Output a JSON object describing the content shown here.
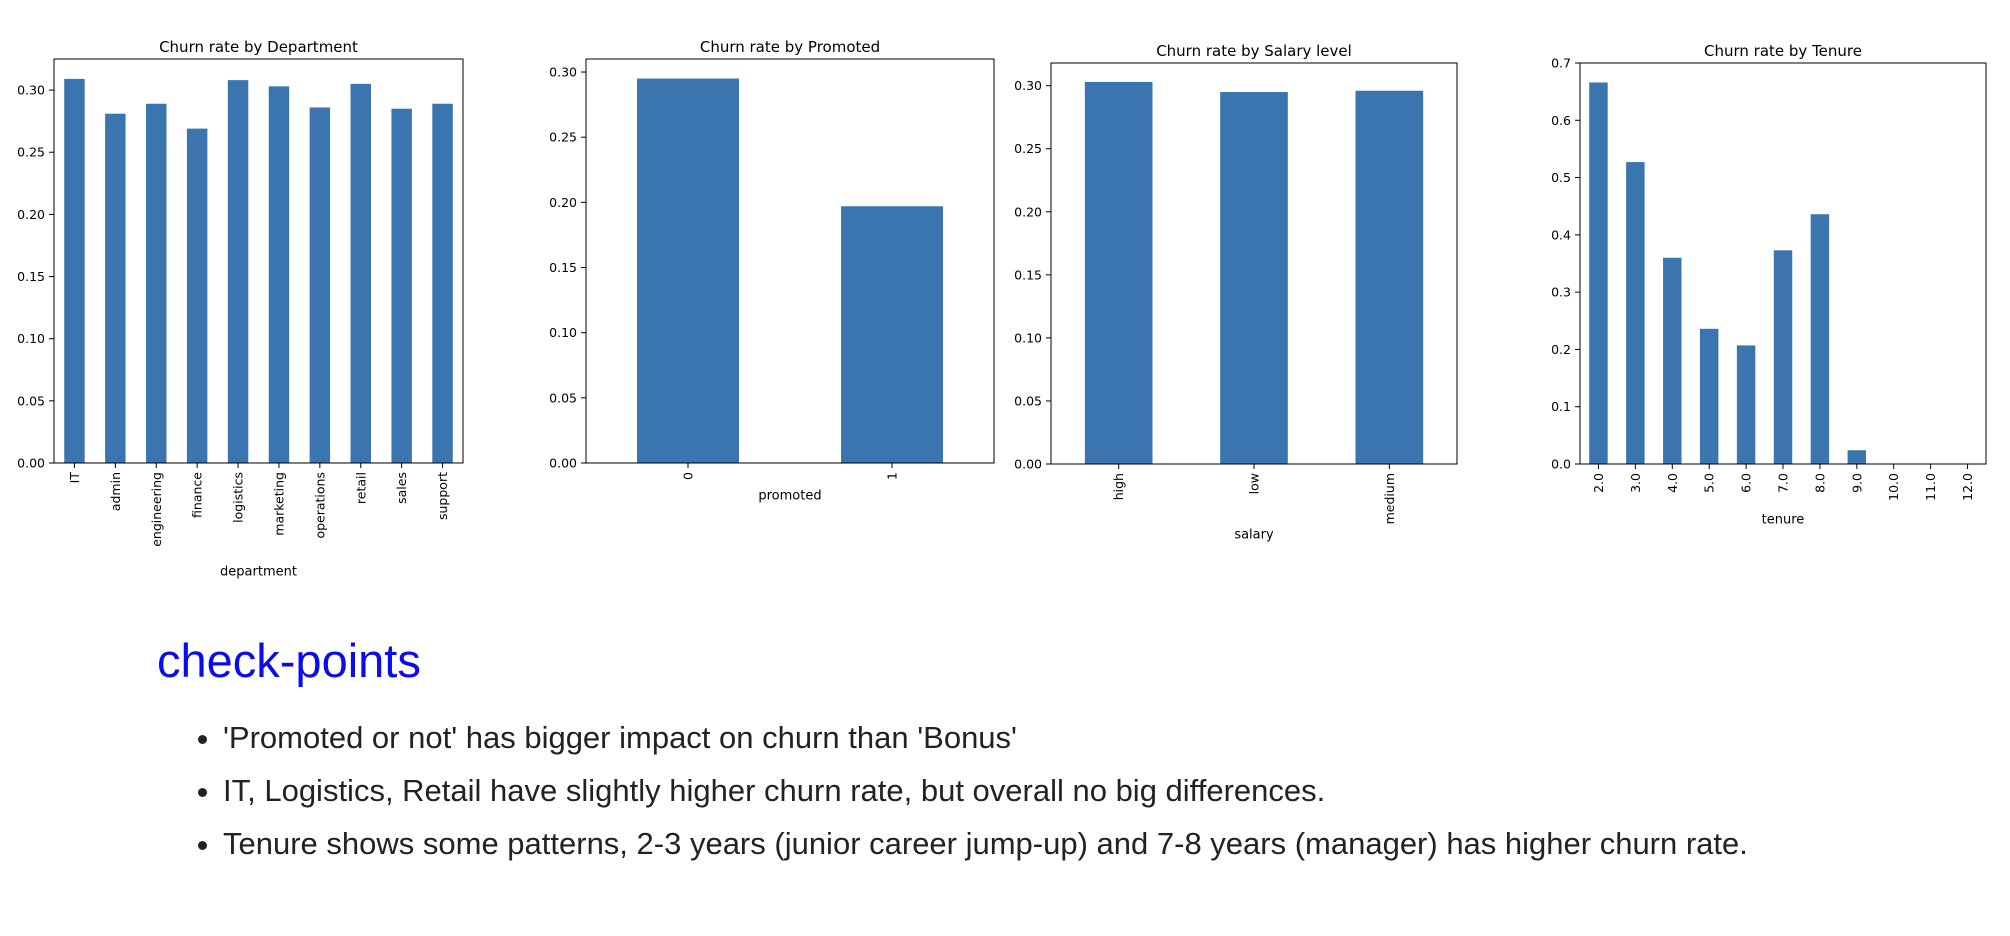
{
  "chart_data": [
    {
      "type": "bar",
      "title": "Churn rate by Department",
      "xlabel": "department",
      "ylabel": "",
      "categories": [
        "IT",
        "admin",
        "engineering",
        "finance",
        "logistics",
        "marketing",
        "operations",
        "retail",
        "sales",
        "support"
      ],
      "values": [
        0.309,
        0.281,
        0.289,
        0.269,
        0.308,
        0.303,
        0.286,
        0.305,
        0.285,
        0.289
      ],
      "ylim": [
        0,
        0.325
      ],
      "yticks": [
        0.0,
        0.05,
        0.1,
        0.15,
        0.2,
        0.25,
        0.3
      ],
      "ytick_labels": [
        "0.00",
        "0.05",
        "0.10",
        "0.15",
        "0.20",
        "0.25",
        "0.30"
      ],
      "color": "#3a75af",
      "grid": false
    },
    {
      "type": "bar",
      "title": "Churn rate by Promoted",
      "xlabel": "promoted",
      "ylabel": "",
      "categories": [
        "0",
        "1"
      ],
      "values": [
        0.295,
        0.197
      ],
      "ylim": [
        0,
        0.31
      ],
      "yticks": [
        0.0,
        0.05,
        0.1,
        0.15,
        0.2,
        0.25,
        0.3
      ],
      "ytick_labels": [
        "0.00",
        "0.05",
        "0.10",
        "0.15",
        "0.20",
        "0.25",
        "0.30"
      ],
      "color": "#3a75af",
      "grid": false
    },
    {
      "type": "bar",
      "title": "Churn rate by Salary level",
      "xlabel": "salary",
      "ylabel": "",
      "categories": [
        "high",
        "low",
        "medium"
      ],
      "values": [
        0.303,
        0.295,
        0.296
      ],
      "ylim": [
        0,
        0.318
      ],
      "yticks": [
        0.0,
        0.05,
        0.1,
        0.15,
        0.2,
        0.25,
        0.3
      ],
      "ytick_labels": [
        "0.00",
        "0.05",
        "0.10",
        "0.15",
        "0.20",
        "0.25",
        "0.30"
      ],
      "color": "#3a75af",
      "grid": false
    },
    {
      "type": "bar",
      "title": "Churn rate by Tenure",
      "xlabel": "tenure",
      "ylabel": "",
      "categories": [
        "2.0",
        "3.0",
        "4.0",
        "5.0",
        "6.0",
        "7.0",
        "8.0",
        "9.0",
        "10.0",
        "11.0",
        "12.0"
      ],
      "values": [
        0.666,
        0.527,
        0.36,
        0.236,
        0.207,
        0.373,
        0.436,
        0.024,
        0.0,
        0.0,
        0.0
      ],
      "ylim": [
        0,
        0.7
      ],
      "yticks": [
        0.0,
        0.1,
        0.2,
        0.3,
        0.4,
        0.5,
        0.6,
        0.7
      ],
      "ytick_labels": [
        "0.0",
        "0.1",
        "0.2",
        "0.3",
        "0.4",
        "0.5",
        "0.6",
        "0.7"
      ],
      "color": "#3a75af",
      "grid": false
    }
  ],
  "notes": {
    "heading": "check-points",
    "items": [
      "'Promoted or not' has bigger impact on churn than 'Bonus'",
      "IT, Logistics, Retail have slightly higher churn rate, but overall no big differences.",
      "Tenure shows some patterns, 2-3 years (junior career jump-up) and 7-8 years (manager) has higher churn rate."
    ]
  }
}
